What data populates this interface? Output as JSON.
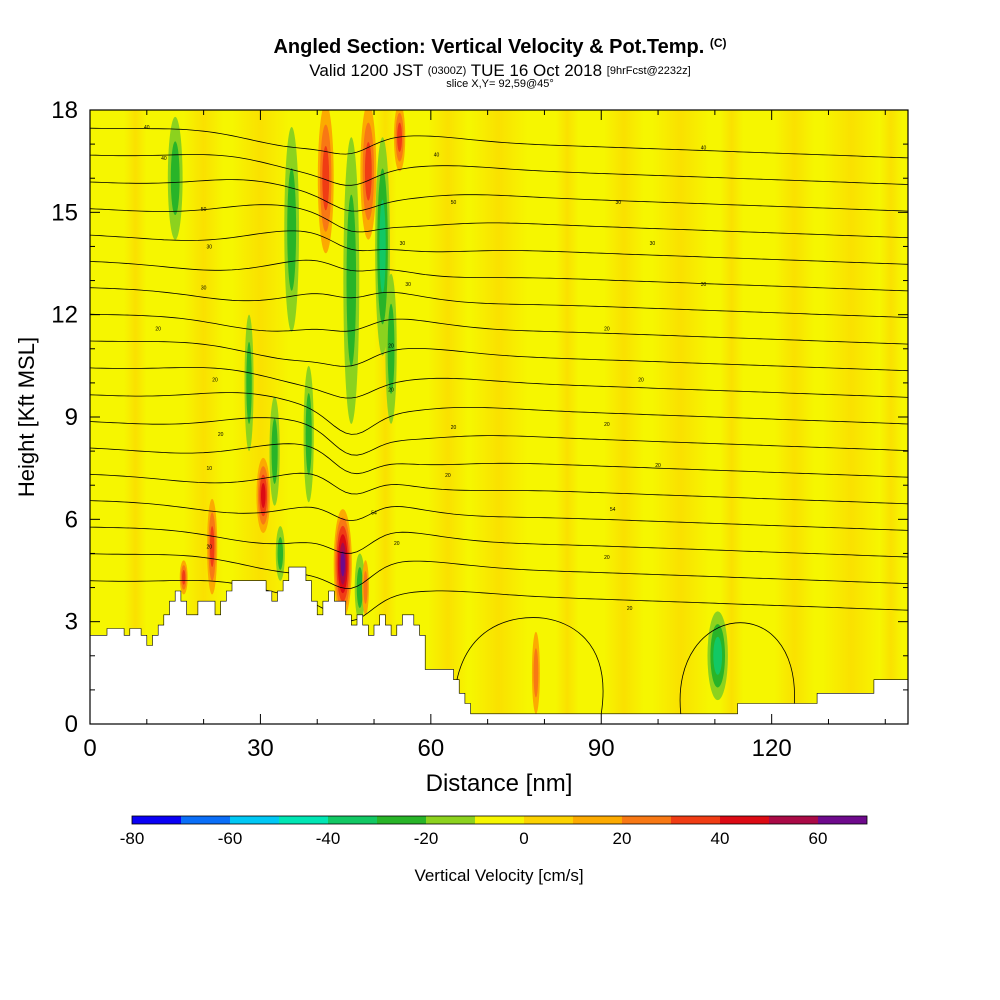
{
  "header": {
    "title": "Angled Section: Vertical Velocity & Pot.Temp.",
    "title_unit": "(C)",
    "valid_prefix": "Valid 1200 JST",
    "valid_utc": "(0300Z)",
    "valid_date": "TUE 16 Oct 2018",
    "forecast_tag": "[9hrFcst@2232z]",
    "slice_info": "slice X,Y= 92,59@45°"
  },
  "chart_data": {
    "type": "heatmap",
    "title": "Angled Section: Vertical Velocity & Pot.Temp. (C)",
    "xlabel": "Distance [nm]",
    "ylabel": "Height [Kft MSL]",
    "xlim": [
      0,
      144
    ],
    "ylim": [
      0,
      18
    ],
    "x_ticks": [
      "0",
      "30",
      "60",
      "90",
      "120"
    ],
    "x_tick_values": [
      0,
      30,
      60,
      90,
      120
    ],
    "y_ticks": [
      "0",
      "3",
      "6",
      "9",
      "12",
      "15",
      "18"
    ],
    "y_tick_values": [
      0,
      3,
      6,
      9,
      12,
      15,
      18
    ],
    "background_color": "#f6f600",
    "terrain_kft": [
      [
        0,
        2.6
      ],
      [
        3,
        2.6
      ],
      [
        3,
        2.8
      ],
      [
        6,
        2.8
      ],
      [
        6,
        2.6
      ],
      [
        7,
        2.6
      ],
      [
        7,
        2.8
      ],
      [
        9,
        2.8
      ],
      [
        9,
        2.6
      ],
      [
        10,
        2.6
      ],
      [
        10,
        2.3
      ],
      [
        11,
        2.3
      ],
      [
        11,
        2.6
      ],
      [
        12,
        2.6
      ],
      [
        12,
        2.9
      ],
      [
        13,
        2.9
      ],
      [
        13,
        3.2
      ],
      [
        14,
        3.2
      ],
      [
        14,
        3.6
      ],
      [
        15,
        3.6
      ],
      [
        15,
        3.9
      ],
      [
        16,
        3.9
      ],
      [
        16,
        3.6
      ],
      [
        17,
        3.6
      ],
      [
        17,
        3.2
      ],
      [
        19,
        3.2
      ],
      [
        19,
        3.6
      ],
      [
        22,
        3.6
      ],
      [
        22,
        3.2
      ],
      [
        23,
        3.2
      ],
      [
        23,
        3.6
      ],
      [
        24,
        3.6
      ],
      [
        24,
        3.9
      ],
      [
        25,
        3.9
      ],
      [
        25,
        4.2
      ],
      [
        31,
        4.2
      ],
      [
        31,
        3.9
      ],
      [
        32,
        3.9
      ],
      [
        32,
        3.6
      ],
      [
        33,
        3.6
      ],
      [
        33,
        3.9
      ],
      [
        34,
        3.9
      ],
      [
        34,
        4.2
      ],
      [
        35,
        4.2
      ],
      [
        35,
        4.6
      ],
      [
        38,
        4.6
      ],
      [
        38,
        4.2
      ],
      [
        39,
        4.2
      ],
      [
        39,
        3.6
      ],
      [
        40,
        3.6
      ],
      [
        40,
        3.2
      ],
      [
        41,
        3.2
      ],
      [
        41,
        3.6
      ],
      [
        42,
        3.6
      ],
      [
        42,
        3.9
      ],
      [
        43,
        3.9
      ],
      [
        43,
        3.6
      ],
      [
        45,
        3.6
      ],
      [
        45,
        3.2
      ],
      [
        46,
        3.2
      ],
      [
        46,
        2.9
      ],
      [
        47,
        2.9
      ],
      [
        47,
        3.2
      ],
      [
        48,
        3.2
      ],
      [
        48,
        2.9
      ],
      [
        49,
        2.9
      ],
      [
        49,
        2.6
      ],
      [
        50,
        2.6
      ],
      [
        50,
        2.9
      ],
      [
        51,
        2.9
      ],
      [
        51,
        3.2
      ],
      [
        52,
        3.2
      ],
      [
        52,
        2.9
      ],
      [
        53,
        2.9
      ],
      [
        53,
        2.6
      ],
      [
        54,
        2.6
      ],
      [
        54,
        2.9
      ],
      [
        55,
        2.9
      ],
      [
        55,
        3.2
      ],
      [
        57,
        3.2
      ],
      [
        57,
        2.9
      ],
      [
        58,
        2.9
      ],
      [
        58,
        2.6
      ],
      [
        59,
        2.6
      ],
      [
        59,
        1.6
      ],
      [
        64,
        1.6
      ],
      [
        64,
        1.3
      ],
      [
        65,
        1.3
      ],
      [
        65,
        0.9
      ],
      [
        66,
        0.9
      ],
      [
        66,
        0.6
      ],
      [
        67,
        0.6
      ],
      [
        67,
        0.3
      ],
      [
        68,
        0.3
      ],
      [
        68,
        0.3
      ],
      [
        114,
        0.3
      ],
      [
        114,
        0.6
      ],
      [
        128,
        0.6
      ],
      [
        128,
        0.9
      ],
      [
        138,
        0.9
      ],
      [
        138,
        1.3
      ],
      [
        144,
        1.3
      ]
    ],
    "updrafts": [
      {
        "x": 44.5,
        "y": 4.7,
        "rx": 1.6,
        "ry": 1.6,
        "max": 60
      },
      {
        "x": 30.5,
        "y": 6.7,
        "rx": 1.2,
        "ry": 1.1,
        "max": 40
      },
      {
        "x": 21.5,
        "y": 5.2,
        "rx": 0.9,
        "ry": 1.4,
        "max": 30
      },
      {
        "x": 16.5,
        "y": 4.3,
        "rx": 0.7,
        "ry": 0.5,
        "max": 30
      },
      {
        "x": 41.5,
        "y": 16.0,
        "rx": 1.4,
        "ry": 2.2,
        "max": 30
      },
      {
        "x": 49.0,
        "y": 16.2,
        "rx": 1.4,
        "ry": 2.0,
        "max": 30
      },
      {
        "x": 54.5,
        "y": 17.2,
        "rx": 1.0,
        "ry": 1.0,
        "max": 30
      },
      {
        "x": 48.5,
        "y": 4.0,
        "rx": 0.6,
        "ry": 0.8,
        "max": 20
      },
      {
        "x": 78.5,
        "y": 1.5,
        "rx": 0.7,
        "ry": 1.2,
        "max": 20
      }
    ],
    "downdrafts": [
      {
        "x": 15.0,
        "y": 16.0,
        "rx": 1.3,
        "ry": 1.8,
        "min": -20
      },
      {
        "x": 35.5,
        "y": 14.5,
        "rx": 1.3,
        "ry": 3.0,
        "min": -20
      },
      {
        "x": 46.0,
        "y": 13.0,
        "rx": 1.4,
        "ry": 4.2,
        "min": -20
      },
      {
        "x": 51.5,
        "y": 14.0,
        "rx": 1.3,
        "ry": 3.2,
        "min": -30
      },
      {
        "x": 53.0,
        "y": 11.0,
        "rx": 1.0,
        "ry": 2.2,
        "min": -20
      },
      {
        "x": 28.0,
        "y": 10.0,
        "rx": 0.8,
        "ry": 2.0,
        "min": -20
      },
      {
        "x": 32.5,
        "y": 8.0,
        "rx": 0.9,
        "ry": 1.6,
        "min": -20
      },
      {
        "x": 38.5,
        "y": 8.5,
        "rx": 0.9,
        "ry": 2.0,
        "min": -20
      },
      {
        "x": 47.5,
        "y": 4.0,
        "rx": 0.9,
        "ry": 1.0,
        "min": -20
      },
      {
        "x": 110.5,
        "y": 2.0,
        "rx": 1.8,
        "ry": 1.3,
        "min": -30
      },
      {
        "x": 33.5,
        "y": 5.0,
        "rx": 0.8,
        "ry": 0.8,
        "min": -20
      }
    ],
    "theta_labels": [
      {
        "text": "40",
        "x": 10,
        "y": 17.5
      },
      {
        "text": "40",
        "x": 13,
        "y": 16.6
      },
      {
        "text": "50",
        "x": 20,
        "y": 15.1
      },
      {
        "text": "30",
        "x": 21,
        "y": 14.0
      },
      {
        "text": "30",
        "x": 20,
        "y": 12.8
      },
      {
        "text": "20",
        "x": 12,
        "y": 11.6
      },
      {
        "text": "20",
        "x": 22,
        "y": 10.1
      },
      {
        "text": "20",
        "x": 23,
        "y": 8.5
      },
      {
        "text": "10",
        "x": 21,
        "y": 7.5
      },
      {
        "text": "20",
        "x": 21,
        "y": 5.2
      },
      {
        "text": "40",
        "x": 61,
        "y": 16.7
      },
      {
        "text": "50",
        "x": 64,
        "y": 15.3
      },
      {
        "text": "30",
        "x": 55,
        "y": 14.1
      },
      {
        "text": "30",
        "x": 56,
        "y": 12.9
      },
      {
        "text": "20",
        "x": 53,
        "y": 11.1
      },
      {
        "text": "20",
        "x": 53,
        "y": 9.8
      },
      {
        "text": "20",
        "x": 64,
        "y": 8.7
      },
      {
        "text": "20",
        "x": 63,
        "y": 7.3
      },
      {
        "text": "54",
        "x": 50,
        "y": 6.2
      },
      {
        "text": "20",
        "x": 54,
        "y": 5.3
      },
      {
        "text": "40",
        "x": 108,
        "y": 16.9
      },
      {
        "text": "30",
        "x": 93,
        "y": 15.3
      },
      {
        "text": "30",
        "x": 99,
        "y": 14.1
      },
      {
        "text": "30",
        "x": 108,
        "y": 12.9
      },
      {
        "text": "20",
        "x": 91,
        "y": 11.6
      },
      {
        "text": "20",
        "x": 97,
        "y": 10.1
      },
      {
        "text": "20",
        "x": 91,
        "y": 8.8
      },
      {
        "text": "20",
        "x": 100,
        "y": 7.6
      },
      {
        "text": "54",
        "x": 92,
        "y": 6.3
      },
      {
        "text": "20",
        "x": 91,
        "y": 4.9
      },
      {
        "text": "20",
        "x": 95,
        "y": 3.4
      }
    ]
  },
  "colorbar": {
    "label": "Vertical Velocity [cm/s]",
    "tick_labels": [
      "-80",
      "-60",
      "-40",
      "-20",
      "0",
      "20",
      "40",
      "60"
    ],
    "tick_values": [
      -80,
      -60,
      -40,
      -20,
      0,
      20,
      40,
      60
    ],
    "bins": [
      -80,
      -70,
      -60,
      -50,
      -40,
      -30,
      -20,
      -10,
      0,
      10,
      20,
      30,
      40,
      50,
      60,
      70
    ],
    "colors": [
      "#0a00f5",
      "#0a6ef8",
      "#00c8f5",
      "#00e6b4",
      "#12c864",
      "#28b428",
      "#8cd21e",
      "#f6f600",
      "#fcd200",
      "#fcaa00",
      "#f87814",
      "#f03c14",
      "#dc0a14",
      "#aa0a46",
      "#6e0a8c"
    ]
  }
}
